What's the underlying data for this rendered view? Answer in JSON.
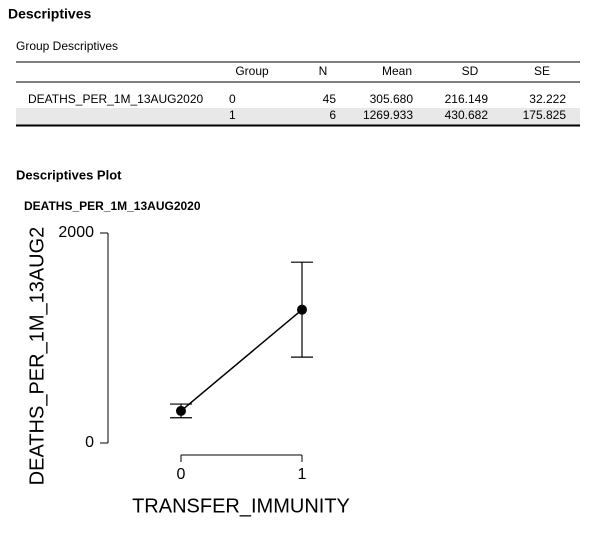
{
  "header": {
    "title": "Descriptives"
  },
  "table": {
    "title": "Group Descriptives",
    "columns": [
      "Group",
      "N",
      "Mean",
      "SD",
      "SE"
    ],
    "rows": [
      {
        "variable": "DEATHS_PER_1M_13AUG2020",
        "cells": [
          "0",
          "45",
          "305.680",
          "216.149",
          "32.222"
        ]
      },
      {
        "cells": [
          "1",
          "6",
          "1269.933",
          "430.682",
          "175.825"
        ]
      }
    ]
  },
  "plot_section": {
    "title": "Descriptives Plot"
  },
  "chart_data": {
    "type": "line",
    "title": "DEATHS_PER_1M_13AUG2020",
    "x_label": "TRANSFER_IMMUNITY",
    "y_label": "DEATHS_PER_1M_13AUG2",
    "categories": [
      "0",
      "1"
    ],
    "values": [
      305.68,
      1269.933
    ],
    "ci_lower": [
      240.74,
      817.96
    ],
    "ci_upper": [
      370.62,
      1721.9
    ],
    "color": "#000000",
    "ylim": [
      0,
      2000
    ],
    "yticks": [
      0,
      2000
    ]
  }
}
